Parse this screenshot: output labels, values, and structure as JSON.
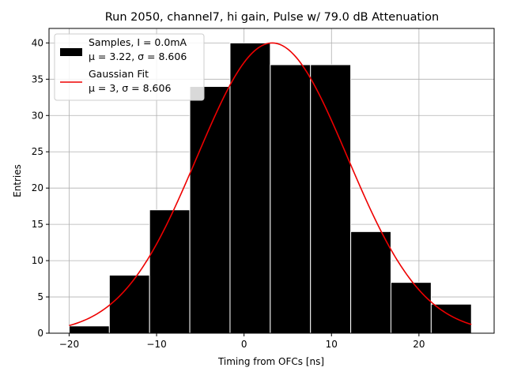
{
  "chart_data": {
    "type": "bar",
    "title": "Run 2050, channel7, hi gain, Pulse w/ 79.0 dB Attenuation",
    "xlabel": "Timing from OFCs [ns]",
    "ylabel": "Entries",
    "xlim": [
      -22.3,
      28.6
    ],
    "ylim": [
      0,
      42
    ],
    "grid": true,
    "xticks": [
      -20,
      -10,
      0,
      10,
      20
    ],
    "yticks": [
      0,
      5,
      10,
      15,
      20,
      25,
      30,
      35,
      40
    ],
    "histogram": {
      "bin_edges": [
        -20.0,
        -15.4,
        -10.8,
        -6.2,
        -1.6,
        3.0,
        7.6,
        12.2,
        16.8,
        21.4,
        26.0
      ],
      "counts": [
        1,
        8,
        17,
        34,
        40,
        37,
        37,
        14,
        7,
        4
      ],
      "color": "#000000",
      "edge_color": "#ffffff"
    },
    "fit": {
      "mu": 3.22,
      "sigma": 8.606,
      "amplitude": 40,
      "x_range": [
        -20,
        26
      ],
      "color": "#ee0000"
    },
    "legend": {
      "position": "upper left",
      "entries": [
        {
          "line1": "Samples, I = 0.0mA",
          "line2": "μ = 3.22, σ = 8.606"
        },
        {
          "line1": "Gaussian Fit",
          "line2": "μ = 3, σ = 8.606"
        }
      ]
    }
  }
}
